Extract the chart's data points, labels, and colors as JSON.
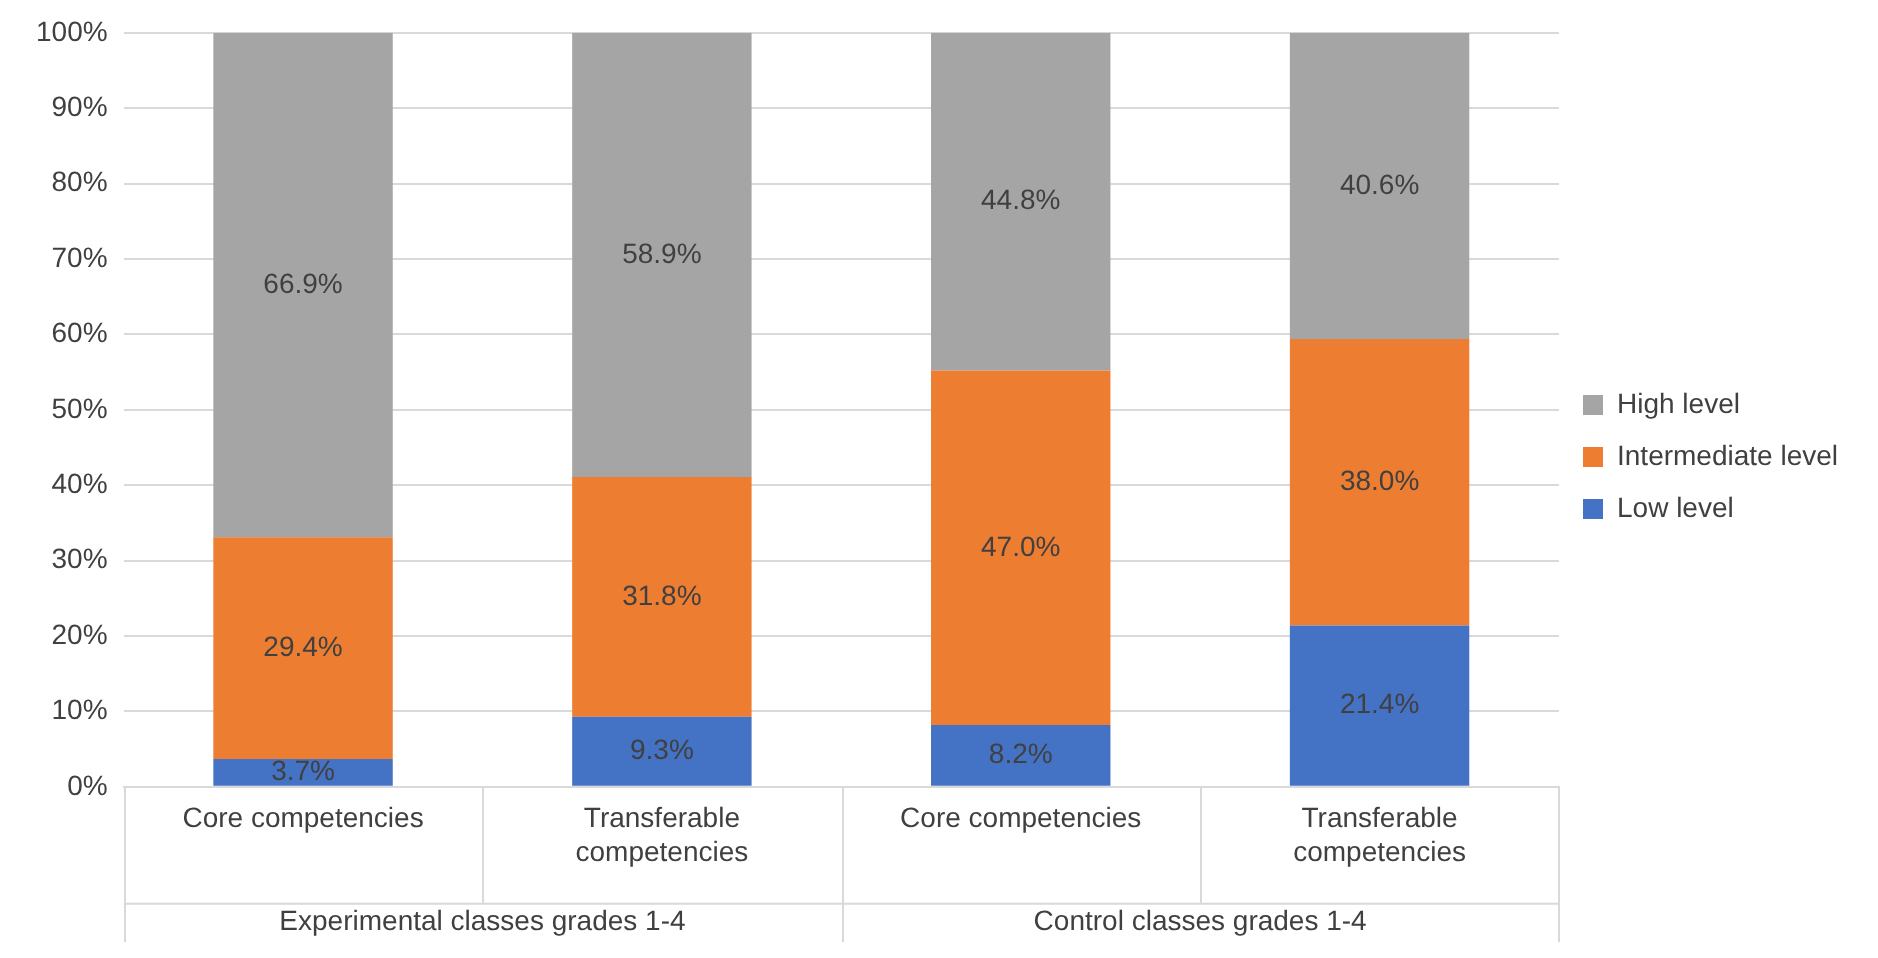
{
  "chart_data": {
    "type": "bar",
    "stacked": true,
    "categories": [
      "Core competencies",
      "Transferable competencies",
      "Core competencies",
      "Transferable competencies"
    ],
    "series": [
      {
        "name": "Low level",
        "color": "#4472c4",
        "values": [
          3.7,
          9.3,
          8.2,
          21.4
        ]
      },
      {
        "name": "Intermediate level",
        "color": "#ed7d31",
        "values": [
          29.4,
          31.8,
          47.0,
          38.0
        ]
      },
      {
        "name": "High level",
        "color": "#a5a5a5",
        "values": [
          66.9,
          58.9,
          44.8,
          40.6
        ]
      }
    ],
    "ylim": [
      0,
      100
    ],
    "yticks": [
      {
        "value": 0,
        "label": "0%"
      },
      {
        "value": 10,
        "label": "10%"
      },
      {
        "value": 20,
        "label": "20%"
      },
      {
        "value": 30,
        "label": "30%"
      },
      {
        "value": 40,
        "label": "40%"
      },
      {
        "value": 50,
        "label": "50%"
      },
      {
        "value": 60,
        "label": "60%"
      },
      {
        "value": 70,
        "label": "70%"
      },
      {
        "value": 80,
        "label": "80%"
      },
      {
        "value": 90,
        "label": "90%"
      },
      {
        "value": 100,
        "label": "100%"
      }
    ],
    "value_labels": [
      [
        "3.7%",
        "9.3%",
        "8.2%",
        "21.4%"
      ],
      [
        "29.4%",
        "31.8%",
        "47.0%",
        "38.0%"
      ],
      [
        "66.9%",
        "58.9%",
        "44.8%",
        "40.6%"
      ]
    ],
    "annotations": [
      "Experimental classes grades 1-4",
      "Control classes grades 1-4"
    ],
    "grid": "y",
    "legend": "right"
  }
}
